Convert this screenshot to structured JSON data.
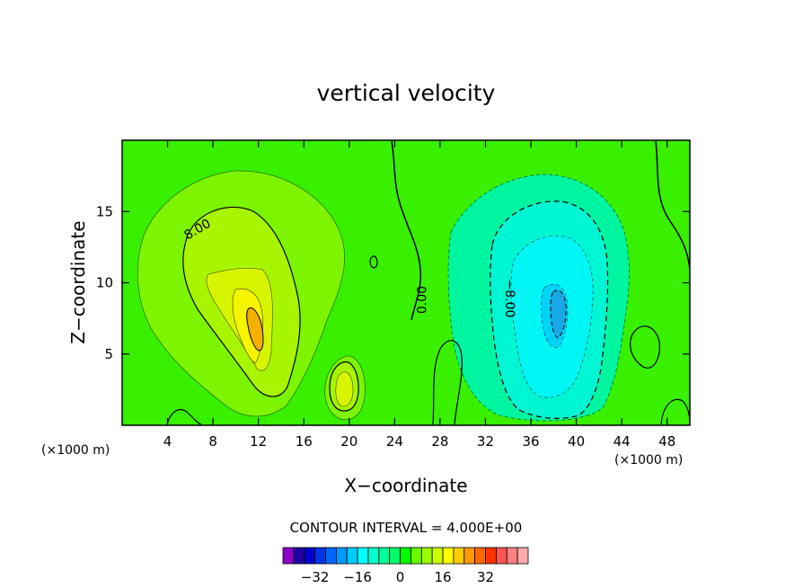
{
  "chart_data": {
    "type": "heatmap",
    "subtype": "filled-contour",
    "title": "vertical velocity",
    "xlabel": "X−coordinate",
    "ylabel": "Z−coordinate",
    "x_unit": "(×1000 m)",
    "y_unit": "(×1000 m)",
    "xlim": [
      0,
      50
    ],
    "ylim": [
      0,
      20
    ],
    "x_ticks": [
      4,
      8,
      12,
      16,
      20,
      24,
      28,
      32,
      36,
      40,
      44,
      48
    ],
    "x_tick_labels": [
      "4",
      "8",
      "12",
      "16",
      "20",
      "24",
      "28",
      "32",
      "36",
      "40",
      "44",
      "48"
    ],
    "y_ticks": [
      5,
      10,
      15
    ],
    "y_tick_labels": [
      "5",
      "10",
      "15"
    ],
    "grid": false,
    "contour_interval_text": "CONTOUR INTERVAL = 4.000E+00",
    "contour_interval": 4,
    "contour_labels": [
      {
        "text": "8.00",
        "x": 6.8,
        "y": 13.5,
        "rotate": -30
      },
      {
        "text": "0.00",
        "x": 26.8,
        "y": 8.8,
        "rotate": -90
      },
      {
        "text": "−8.00",
        "x": 33.8,
        "y": 8.9,
        "rotate": 90
      }
    ],
    "features": [
      {
        "sign": "positive",
        "center": [
          11.5,
          7.0
        ],
        "peak": 20,
        "desc": "updraft plume"
      },
      {
        "sign": "positive",
        "center": [
          19.5,
          2.8
        ],
        "peak": 8
      },
      {
        "sign": "negative",
        "center": [
          38.5,
          8.0
        ],
        "peak": -20,
        "desc": "downdraft plume"
      }
    ],
    "colorbar": {
      "levels": [
        -36,
        -32,
        -28,
        -24,
        -20,
        -16,
        -12,
        -8,
        -4,
        0,
        4,
        8,
        12,
        16,
        20,
        24,
        28,
        32,
        36
      ],
      "colors": [
        "#8b00c8",
        "#2200a8",
        "#0000cc",
        "#0033e6",
        "#0066ff",
        "#0099ff",
        "#00ccff",
        "#00ffff",
        "#00ffcc",
        "#00ff99",
        "#00ff66",
        "#00ff00",
        "#66ff00",
        "#99ff00",
        "#ccff00",
        "#ffff00",
        "#ffcc00",
        "#ff9900",
        "#ff6600",
        "#ff3300",
        "#ff5555",
        "#ff8080",
        "#ffaaaa"
      ],
      "tick_values": [
        -32,
        -16,
        0,
        16,
        32
      ],
      "tick_labels": [
        "−32",
        "−16",
        "0",
        "16",
        "32"
      ]
    }
  }
}
